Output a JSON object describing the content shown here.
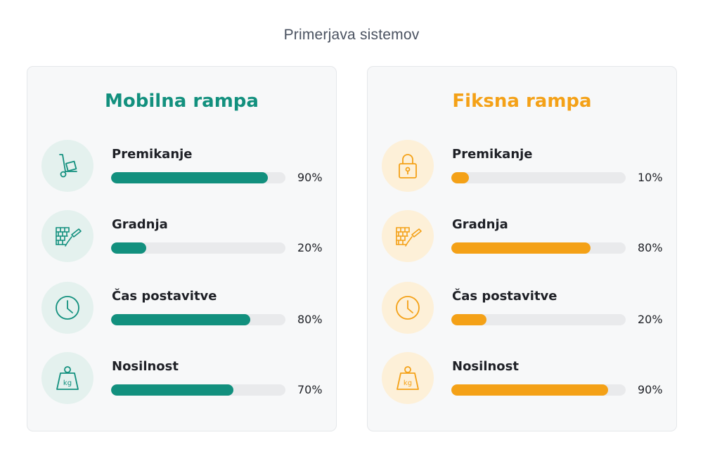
{
  "page_title": "Primerjava sistemov",
  "cards": [
    {
      "title": "Mobilna rampa",
      "accent": "#12907e",
      "icon_bg": "#e4f1ee",
      "metrics": [
        {
          "label": "Premikanje",
          "value_text": "90%",
          "value": 90,
          "icon": "hand-truck-icon"
        },
        {
          "label": "Gradnja",
          "value_text": "20%",
          "value": 20,
          "icon": "brick-wall-trowel-icon"
        },
        {
          "label": "Čas postavitve",
          "value_text": "80%",
          "value": 80,
          "icon": "clock-icon"
        },
        {
          "label": "Nosilnost",
          "value_text": "70%",
          "value": 70,
          "icon": "kg-weight-icon"
        }
      ]
    },
    {
      "title": "Fiksna rampa",
      "accent": "#f4a117",
      "icon_bg": "#fdf0d8",
      "metrics": [
        {
          "label": "Premikanje",
          "value_text": "10%",
          "value": 10,
          "icon": "lock-icon"
        },
        {
          "label": "Gradnja",
          "value_text": "80%",
          "value": 80,
          "icon": "brick-wall-trowel-icon"
        },
        {
          "label": "Čas postavitve",
          "value_text": "20%",
          "value": 20,
          "icon": "clock-icon"
        },
        {
          "label": "Nosilnost",
          "value_text": "90%",
          "value": 90,
          "icon": "kg-weight-icon"
        }
      ]
    }
  ],
  "icon_texts": {
    "kg": "kg"
  }
}
